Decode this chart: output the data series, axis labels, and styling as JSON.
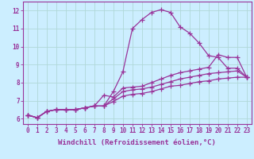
{
  "xlabel": "Windchill (Refroidissement éolien,°C)",
  "ylabel": "",
  "background_color": "#cceeff",
  "grid_color": "#b0d8d8",
  "line_color": "#993399",
  "xlim": [
    -0.5,
    23.5
  ],
  "ylim": [
    5.7,
    12.5
  ],
  "xticks": [
    0,
    1,
    2,
    3,
    4,
    5,
    6,
    7,
    8,
    9,
    10,
    11,
    12,
    13,
    14,
    15,
    16,
    17,
    18,
    19,
    20,
    21,
    22,
    23
  ],
  "yticks": [
    6,
    7,
    8,
    9,
    10,
    11,
    12
  ],
  "series": [
    [
      6.2,
      6.05,
      6.4,
      6.5,
      6.5,
      6.5,
      6.6,
      6.7,
      6.7,
      7.5,
      8.6,
      11.0,
      11.5,
      11.9,
      12.05,
      11.9,
      11.1,
      10.75,
      10.2,
      9.5,
      9.4,
      8.8,
      8.8,
      8.3
    ],
    [
      6.2,
      6.05,
      6.4,
      6.5,
      6.5,
      6.5,
      6.6,
      6.7,
      7.3,
      7.2,
      7.7,
      7.75,
      7.8,
      8.0,
      8.2,
      8.4,
      8.55,
      8.65,
      8.75,
      8.85,
      9.55,
      9.4,
      9.4,
      8.3
    ],
    [
      6.2,
      6.05,
      6.4,
      6.5,
      6.5,
      6.5,
      6.6,
      6.7,
      6.7,
      7.1,
      7.5,
      7.6,
      7.65,
      7.75,
      7.9,
      8.05,
      8.2,
      8.3,
      8.4,
      8.5,
      8.55,
      8.6,
      8.65,
      8.3
    ],
    [
      6.2,
      6.05,
      6.4,
      6.5,
      6.5,
      6.5,
      6.6,
      6.7,
      6.7,
      6.95,
      7.25,
      7.35,
      7.4,
      7.5,
      7.65,
      7.8,
      7.85,
      7.95,
      8.05,
      8.1,
      8.2,
      8.25,
      8.3,
      8.3
    ]
  ],
  "marker": "+",
  "markersize": 4,
  "linewidth": 0.9,
  "xlabel_fontsize": 6.5,
  "tick_fontsize": 5.5
}
